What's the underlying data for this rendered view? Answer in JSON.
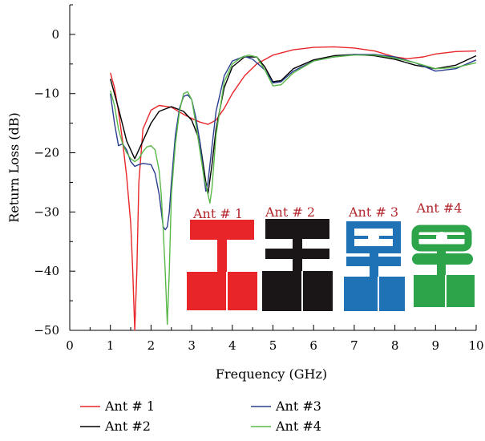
{
  "chart_data": {
    "type": "line",
    "title": "",
    "xlabel": "Frequency (GHz)",
    "ylabel": "Return Loss (dB)",
    "xlim": [
      0,
      10
    ],
    "ylim": [
      -50,
      5
    ],
    "xticks": [
      "0",
      "1",
      "2",
      "3",
      "4",
      "5",
      "6",
      "7",
      "8",
      "9",
      "10"
    ],
    "yticks": [
      "0",
      "−10",
      "−20",
      "−30",
      "−40",
      "−50"
    ],
    "grid": false,
    "legend_position": "bottom",
    "series": [
      {
        "name": "Ant # 1",
        "color": "#e8262a",
        "x": [
          1.0,
          1.1,
          1.2,
          1.3,
          1.4,
          1.5,
          1.55,
          1.6,
          1.65,
          1.7,
          1.8,
          2.0,
          2.2,
          2.5,
          2.8,
          3.0,
          3.2,
          3.4,
          3.6,
          3.8,
          4.0,
          4.3,
          4.6,
          5.0,
          5.5,
          6.0,
          6.5,
          7.0,
          7.5,
          8.0,
          8.3,
          8.7,
          9.0,
          9.5,
          10.0
        ],
        "y": [
          -6.5,
          -9,
          -13,
          -18,
          -24,
          -32,
          -40,
          -50,
          -40,
          -25,
          -16,
          -12.8,
          -12,
          -12.3,
          -13.5,
          -14.2,
          -14.8,
          -15.2,
          -14.5,
          -12.5,
          -10,
          -7,
          -5,
          -3.5,
          -2.6,
          -2.2,
          -2.1,
          -2.3,
          -2.8,
          -3.8,
          -4.1,
          -3.8,
          -3.3,
          -2.9,
          -2.8
        ]
      },
      {
        "name": "Ant #2",
        "color": "#000000",
        "x": [
          1.0,
          1.2,
          1.4,
          1.6,
          1.8,
          2.0,
          2.2,
          2.5,
          2.8,
          3.0,
          3.2,
          3.35,
          3.4,
          3.5,
          3.6,
          3.8,
          4.0,
          4.3,
          4.6,
          4.8,
          5.0,
          5.2,
          5.5,
          6.0,
          6.5,
          7.0,
          7.5,
          8.0,
          8.5,
          9.0,
          9.5,
          10.0
        ],
        "y": [
          -7.5,
          -12.5,
          -18,
          -21,
          -18,
          -15,
          -13,
          -12.2,
          -13,
          -14.5,
          -18,
          -25,
          -27,
          -22,
          -16,
          -9,
          -5.5,
          -3.8,
          -3.8,
          -5.5,
          -8,
          -7.8,
          -5.8,
          -4.3,
          -3.6,
          -3.4,
          -3.6,
          -4.2,
          -5.2,
          -5.8,
          -5.2,
          -3.6
        ]
      },
      {
        "name": "Ant #3",
        "color": "#2b3d8f",
        "x": [
          1.0,
          1.1,
          1.2,
          1.3,
          1.4,
          1.5,
          1.6,
          1.7,
          1.8,
          2.0,
          2.1,
          2.2,
          2.3,
          2.35,
          2.4,
          2.45,
          2.5,
          2.6,
          2.7,
          2.8,
          2.9,
          3.0,
          3.1,
          3.2,
          3.3,
          3.35,
          3.4,
          3.5,
          3.6,
          3.8,
          4.0,
          4.3,
          4.5,
          4.8,
          5.0,
          5.2,
          5.5,
          6.0,
          6.5,
          7.0,
          7.5,
          8.0,
          8.5,
          9.0,
          9.5,
          10.0
        ],
        "y": [
          -10,
          -15,
          -18.8,
          -18.5,
          -19.5,
          -21.5,
          -22.3,
          -22,
          -21.8,
          -22,
          -23.5,
          -27,
          -32.5,
          -33,
          -32.5,
          -30,
          -25,
          -17,
          -12.5,
          -10.5,
          -10.2,
          -11,
          -14,
          -18,
          -24,
          -26.5,
          -25,
          -19,
          -13,
          -7,
          -4.5,
          -3.7,
          -4.2,
          -6,
          -8.2,
          -8,
          -6.2,
          -4.5,
          -3.8,
          -3.4,
          -3.4,
          -3.8,
          -4.8,
          -6.2,
          -5.8,
          -4.3
        ]
      },
      {
        "name": "Ant #4",
        "color": "#59b847",
        "x": [
          1.0,
          1.1,
          1.2,
          1.3,
          1.4,
          1.5,
          1.6,
          1.7,
          1.8,
          1.9,
          2.0,
          2.1,
          2.2,
          2.25,
          2.3,
          2.35,
          2.4,
          2.45,
          2.5,
          2.6,
          2.7,
          2.8,
          2.9,
          3.0,
          3.1,
          3.2,
          3.3,
          3.4,
          3.45,
          3.5,
          3.6,
          3.8,
          4.0,
          4.2,
          4.4,
          4.6,
          4.8,
          5.0,
          5.2,
          5.5,
          6.0,
          6.5,
          7.0,
          7.5,
          8.0,
          8.5,
          9.0,
          9.5,
          10.0
        ],
        "y": [
          -9.5,
          -12,
          -16,
          -18.5,
          -20,
          -21,
          -21.5,
          -21,
          -19.8,
          -19,
          -18.8,
          -19.5,
          -23,
          -27,
          -33,
          -40,
          -49,
          -40,
          -27,
          -18.5,
          -13,
          -10,
          -9.7,
          -11,
          -15,
          -19.5,
          -24,
          -27,
          -28.5,
          -26,
          -17,
          -8,
          -5,
          -4,
          -3.5,
          -3.8,
          -6,
          -8.7,
          -8.5,
          -6.5,
          -4.5,
          -3.8,
          -3.5,
          -3.5,
          -4,
          -4.8,
          -5.8,
          -5.6,
          -4.8
        ]
      }
    ],
    "inset": {
      "labels": [
        "Ant # 1",
        "Ant # 2",
        "Ant # 3",
        "Ant #4"
      ],
      "colors": [
        "#e8262a",
        "#1a1617",
        "#1f72b6",
        "#2da44a"
      ]
    }
  }
}
